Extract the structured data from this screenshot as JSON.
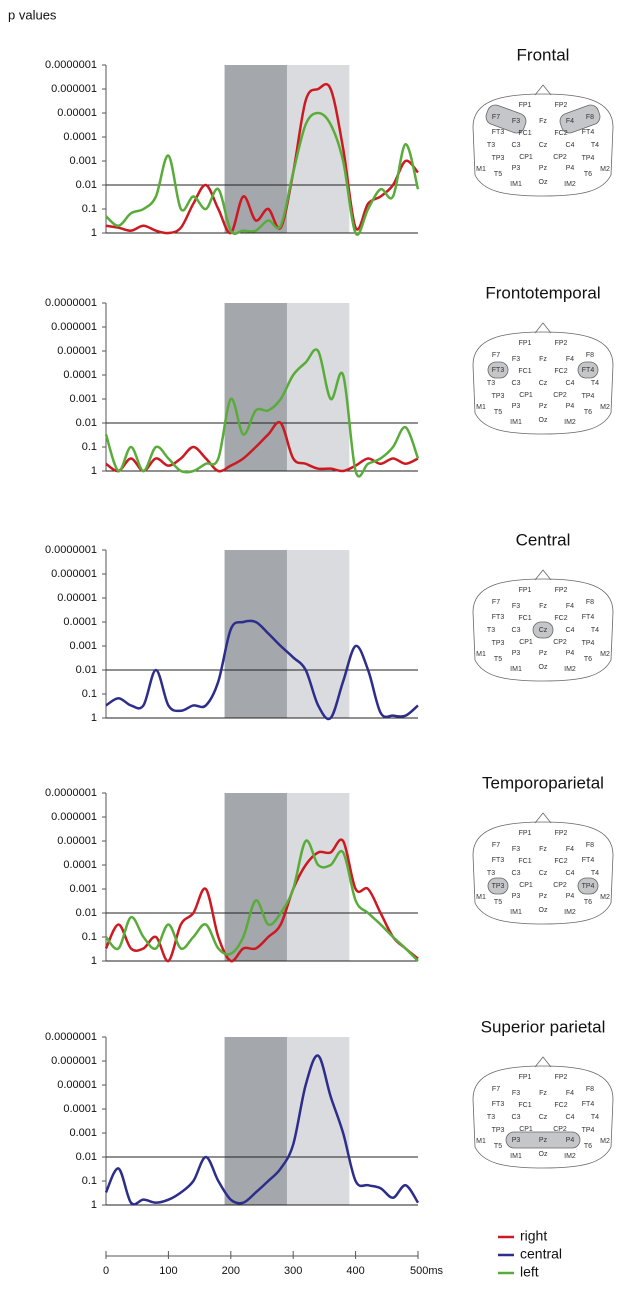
{
  "montage": [
    "FP1",
    "FP2",
    "F7",
    "F3",
    "Fz",
    "F4",
    "F8",
    "FT3",
    "FC1",
    "FC2",
    "FT4",
    "T3",
    "C3",
    "Cz",
    "C4",
    "T4",
    "TP3",
    "CP1",
    "CP2",
    "TP4",
    "M1",
    "T5",
    "P3",
    "Pz",
    "P4",
    "T6",
    "M2",
    "IM1",
    "Oz",
    "IM2"
  ],
  "chart_data": [
    {
      "type": "line",
      "title": "Frontal",
      "ylabel": "p values",
      "x": [
        0,
        20,
        40,
        60,
        80,
        100,
        120,
        140,
        160,
        180,
        200,
        220,
        240,
        260,
        280,
        300,
        320,
        340,
        360,
        380,
        400,
        420,
        440,
        460,
        480,
        500
      ],
      "series": [
        {
          "name": "right",
          "color": "#cc1a22",
          "values": [
            0.5,
            0.6,
            0.8,
            0.5,
            0.8,
            1,
            0.6,
            0.06,
            0.01,
            0.1,
            1,
            0.03,
            0.3,
            0.1,
            0.6,
            0.003,
            3e-06,
            1e-06,
            1e-06,
            0.0003,
            0.6,
            0.06,
            0.03,
            0.01,
            0.001,
            0.003
          ]
        },
        {
          "name": "left",
          "color": "#5aac3a",
          "values": [
            0.2,
            0.5,
            0.15,
            0.1,
            0.03,
            0.0006,
            0.1,
            0.03,
            0.1,
            0.015,
            0.8,
            0.8,
            0.8,
            0.3,
            0.5,
            0.003,
            3e-05,
            1e-05,
            3e-05,
            0.001,
            1,
            0.1,
            0.015,
            0.03,
            0.0002,
            0.015
          ]
        }
      ],
      "xlim": [
        0,
        500
      ],
      "ylim": [
        1,
        1e-07
      ],
      "yscale": "log",
      "yticks": [
        1,
        0.1,
        0.01,
        0.001,
        0.0001,
        1e-05,
        1e-06,
        {
          "value": 1e-07,
          "label": "0.0000001"
        }
      ],
      "shaded": [
        {
          "range": [
            190,
            290
          ],
          "color": "#a4a7ac"
        },
        {
          "range": [
            290,
            390
          ],
          "color": "#d9dbde"
        }
      ],
      "threshold": 0.01,
      "highlight": [
        [
          "F7",
          "F3"
        ],
        [
          "F4",
          "F8"
        ]
      ]
    },
    {
      "type": "line",
      "title": "Frontotemporal",
      "x": [
        0,
        20,
        40,
        60,
        80,
        100,
        120,
        140,
        160,
        180,
        200,
        220,
        240,
        260,
        280,
        300,
        320,
        340,
        360,
        380,
        400,
        420,
        440,
        460,
        480,
        500
      ],
      "series": [
        {
          "name": "right",
          "color": "#cc1a22",
          "values": [
            0.5,
            1,
            0.3,
            1,
            0.3,
            0.6,
            0.3,
            0.1,
            0.3,
            1,
            0.6,
            0.3,
            0.1,
            0.03,
            0.01,
            0.3,
            0.5,
            0.8,
            0.8,
            1,
            0.6,
            0.3,
            0.5,
            0.3,
            0.5,
            0.3
          ]
        },
        {
          "name": "left",
          "color": "#5aac3a",
          "values": [
            0.03,
            1,
            0.1,
            1,
            0.1,
            0.3,
            1,
            1,
            0.5,
            0.3,
            0.001,
            0.03,
            0.003,
            0.003,
            0.001,
            0.0001,
            3e-05,
            1e-05,
            0.001,
            0.0001,
            1,
            0.5,
            0.3,
            0.1,
            0.015,
            0.3
          ]
        }
      ],
      "xlim": [
        0,
        500
      ],
      "ylim": [
        1,
        1e-07
      ],
      "yscale": "log",
      "yticks": [
        1,
        0.1,
        0.01,
        0.001,
        0.0001,
        1e-05,
        1e-06,
        {
          "value": 1e-07,
          "label": "0.0000001"
        }
      ],
      "shaded": [
        {
          "range": [
            190,
            290
          ],
          "color": "#a4a7ac"
        },
        {
          "range": [
            290,
            390
          ],
          "color": "#d9dbde"
        }
      ],
      "threshold": 0.01,
      "highlight": [
        [
          "FT3"
        ],
        [
          "FT4"
        ]
      ]
    },
    {
      "type": "line",
      "title": "Central",
      "x": [
        0,
        20,
        40,
        60,
        80,
        100,
        120,
        140,
        160,
        180,
        200,
        220,
        240,
        260,
        280,
        300,
        320,
        340,
        360,
        380,
        400,
        420,
        440,
        460,
        480,
        500
      ],
      "series": [
        {
          "name": "central",
          "color": "#2d2d8c",
          "values": [
            0.3,
            0.15,
            0.3,
            0.3,
            0.01,
            0.3,
            0.5,
            0.3,
            0.3,
            0.03,
            0.0002,
            0.0001,
            0.0001,
            0.0003,
            0.001,
            0.003,
            0.01,
            0.3,
            1,
            0.03,
            0.001,
            0.01,
            0.6,
            0.8,
            0.8,
            0.3
          ]
        }
      ],
      "xlim": [
        0,
        500
      ],
      "ylim": [
        1,
        1e-07
      ],
      "yscale": "log",
      "yticks": [
        1,
        0.1,
        0.01,
        0.001,
        0.0001,
        1e-05,
        1e-06,
        {
          "value": 1e-07,
          "label": "0.0000001"
        }
      ],
      "shaded": [
        {
          "range": [
            190,
            290
          ],
          "color": "#a4a7ac"
        },
        {
          "range": [
            290,
            390
          ],
          "color": "#d9dbde"
        }
      ],
      "threshold": 0.01,
      "highlight": [
        [
          "Cz"
        ]
      ]
    },
    {
      "type": "line",
      "title": "Temporoparietal",
      "x": [
        0,
        20,
        40,
        60,
        80,
        100,
        120,
        140,
        160,
        180,
        200,
        220,
        240,
        260,
        280,
        300,
        320,
        340,
        360,
        380,
        400,
        420,
        440,
        460,
        480,
        500
      ],
      "series": [
        {
          "name": "right",
          "color": "#cc1a22",
          "values": [
            0.3,
            0.03,
            0.3,
            0.3,
            0.1,
            1,
            0.03,
            0.01,
            0.001,
            0.1,
            1,
            0.3,
            0.3,
            0.1,
            0.03,
            0.001,
            0.0001,
            3e-05,
            3e-05,
            1e-05,
            0.001,
            0.001,
            0.01,
            0.1,
            0.3,
            0.8
          ]
        },
        {
          "name": "left",
          "color": "#5aac3a",
          "values": [
            0.1,
            0.3,
            0.015,
            0.1,
            0.3,
            0.03,
            0.3,
            0.1,
            0.03,
            0.3,
            0.5,
            0.1,
            0.003,
            0.03,
            0.01,
            0.001,
            1e-05,
            0.0001,
            0.0001,
            3e-05,
            0.003,
            0.01,
            0.03,
            0.1,
            0.3,
            1
          ]
        }
      ],
      "xlim": [
        0,
        500
      ],
      "ylim": [
        1,
        1e-07
      ],
      "yscale": "log",
      "yticks": [
        1,
        0.1,
        0.01,
        0.001,
        0.0001,
        1e-05,
        1e-06,
        {
          "value": 1e-07,
          "label": "0.0000001"
        }
      ],
      "shaded": [
        {
          "range": [
            190,
            290
          ],
          "color": "#a4a7ac"
        },
        {
          "range": [
            290,
            390
          ],
          "color": "#d9dbde"
        }
      ],
      "threshold": 0.01,
      "highlight": [
        [
          "TP3"
        ],
        [
          "TP4"
        ]
      ]
    },
    {
      "type": "line",
      "title": "Superior parietal",
      "x": [
        0,
        20,
        40,
        60,
        80,
        100,
        120,
        140,
        160,
        180,
        200,
        220,
        240,
        260,
        280,
        300,
        320,
        340,
        360,
        380,
        400,
        420,
        440,
        460,
        480,
        500
      ],
      "series": [
        {
          "name": "central",
          "color": "#2d2d8c",
          "values": [
            0.3,
            0.03,
            0.8,
            0.6,
            0.8,
            0.6,
            0.3,
            0.1,
            0.01,
            0.1,
            0.6,
            0.8,
            0.3,
            0.1,
            0.03,
            0.003,
            1e-05,
            6e-07,
            3e-05,
            0.001,
            0.1,
            0.15,
            0.2,
            0.5,
            0.15,
            0.8
          ]
        }
      ],
      "xlim": [
        0,
        500
      ],
      "ylim": [
        1,
        1e-07
      ],
      "yscale": "log",
      "yticks": [
        1,
        0.1,
        0.01,
        0.001,
        0.0001,
        1e-05,
        1e-06,
        {
          "value": 1e-07,
          "label": "0.0000001"
        }
      ],
      "xticks": [
        0,
        100,
        200,
        300,
        400,
        {
          "value": 500,
          "label": "500ms"
        }
      ],
      "shaded": [
        {
          "range": [
            190,
            290
          ],
          "color": "#a4a7ac"
        },
        {
          "range": [
            290,
            390
          ],
          "color": "#d9dbde"
        }
      ],
      "threshold": 0.01,
      "highlight": [
        [
          "P3",
          "Pz",
          "P4"
        ]
      ]
    }
  ]
}
